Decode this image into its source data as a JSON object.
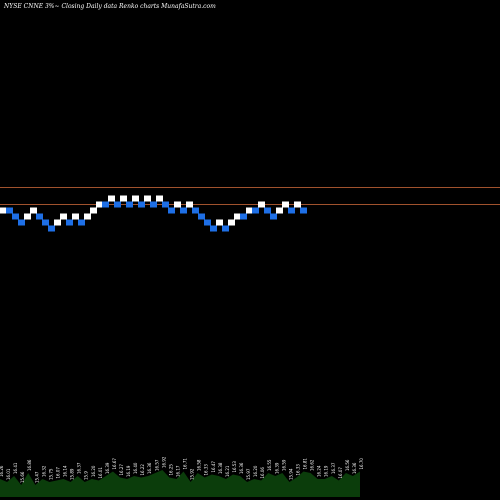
{
  "header": {
    "title": "NYSE CNNE 3%~  Closing Daily data  Renko  charts MunafaSutra.com"
  },
  "chart_data": {
    "type": "renko",
    "title": "NYSE CNNE 3%~  Closing Daily data  Renko  charts MunafaSutra.com",
    "brick_size_label": "3%",
    "colors": {
      "up": "#ffffff",
      "down": "#1e6fe6",
      "reference_line": "#a0522d",
      "volume": "#0b3d0b",
      "background": "#000000"
    },
    "reference_lines": [
      18.9,
      18.35
    ],
    "ylim": [
      15.6,
      19.6
    ],
    "bricks": [
      {
        "dir": "up",
        "level": 18.35
      },
      {
        "dir": "down",
        "level": 18.35
      },
      {
        "dir": "down",
        "level": 18.2
      },
      {
        "dir": "down",
        "level": 18.05
      },
      {
        "dir": "up",
        "level": 18.2
      },
      {
        "dir": "up",
        "level": 18.35
      },
      {
        "dir": "down",
        "level": 18.2
      },
      {
        "dir": "down",
        "level": 18.05
      },
      {
        "dir": "down",
        "level": 17.9
      },
      {
        "dir": "up",
        "level": 18.05
      },
      {
        "dir": "up",
        "level": 18.2
      },
      {
        "dir": "down",
        "level": 18.05
      },
      {
        "dir": "up",
        "level": 18.2
      },
      {
        "dir": "down",
        "level": 18.05
      },
      {
        "dir": "up",
        "level": 18.2
      },
      {
        "dir": "up",
        "level": 18.35
      },
      {
        "dir": "up",
        "level": 18.5
      },
      {
        "dir": "down",
        "level": 18.5
      },
      {
        "dir": "up",
        "level": 18.65
      },
      {
        "dir": "down",
        "level": 18.5
      },
      {
        "dir": "up",
        "level": 18.65
      },
      {
        "dir": "down",
        "level": 18.5
      },
      {
        "dir": "up",
        "level": 18.65
      },
      {
        "dir": "down",
        "level": 18.5
      },
      {
        "dir": "up",
        "level": 18.65
      },
      {
        "dir": "down",
        "level": 18.5
      },
      {
        "dir": "up",
        "level": 18.65
      },
      {
        "dir": "down",
        "level": 18.5
      },
      {
        "dir": "down",
        "level": 18.35
      },
      {
        "dir": "up",
        "level": 18.5
      },
      {
        "dir": "down",
        "level": 18.35
      },
      {
        "dir": "up",
        "level": 18.5
      },
      {
        "dir": "down",
        "level": 18.35
      },
      {
        "dir": "down",
        "level": 18.2
      },
      {
        "dir": "down",
        "level": 18.05
      },
      {
        "dir": "down",
        "level": 17.9
      },
      {
        "dir": "up",
        "level": 18.05
      },
      {
        "dir": "down",
        "level": 17.9
      },
      {
        "dir": "up",
        "level": 18.05
      },
      {
        "dir": "up",
        "level": 18.2
      },
      {
        "dir": "down",
        "level": 18.2
      },
      {
        "dir": "up",
        "level": 18.35
      },
      {
        "dir": "down",
        "level": 18.35
      },
      {
        "dir": "up",
        "level": 18.5
      },
      {
        "dir": "down",
        "level": 18.35
      },
      {
        "dir": "down",
        "level": 18.2
      },
      {
        "dir": "up",
        "level": 18.35
      },
      {
        "dir": "up",
        "level": 18.5
      },
      {
        "dir": "down",
        "level": 18.35
      },
      {
        "dir": "up",
        "level": 18.5
      },
      {
        "dir": "down",
        "level": 18.35
      }
    ],
    "volume_labels": [
      "16.26",
      "16.01",
      "16.41",
      "15.66",
      "16.86",
      "15.47",
      "16.32",
      "15.75",
      "16.07",
      "16.14",
      "15.89",
      "16.37",
      "15.9",
      "16.20",
      "16.01",
      "16.39",
      "16.67",
      "16.27",
      "16.19",
      "16.40",
      "16.22",
      "16.36",
      "16.57",
      "16.92",
      "16.25",
      "16.17",
      "16.71",
      "15.92",
      "16.58",
      "16.33",
      "16.47",
      "16.38",
      "16.21",
      "16.53",
      "16.36",
      "15.97",
      "16.20",
      "16.06",
      "16.55",
      "16.39",
      "16.59",
      "15.94",
      "16.33",
      "16.81",
      "16.62",
      "16.24",
      "16.19",
      "16.37",
      "16.07",
      "16.56",
      "16.36",
      "16.70"
    ],
    "volume_values": [
      0.6,
      0.5,
      0.7,
      0.4,
      0.8,
      0.4,
      0.6,
      0.5,
      0.55,
      0.6,
      0.5,
      0.7,
      0.5,
      0.6,
      0.55,
      0.7,
      0.85,
      0.65,
      0.6,
      0.7,
      0.65,
      0.7,
      0.8,
      0.9,
      0.65,
      0.6,
      0.85,
      0.5,
      0.8,
      0.65,
      0.75,
      0.7,
      0.6,
      0.75,
      0.7,
      0.5,
      0.6,
      0.55,
      0.8,
      0.7,
      0.8,
      0.5,
      0.65,
      0.85,
      0.8,
      0.6,
      0.6,
      0.7,
      0.55,
      0.8,
      0.7,
      0.85
    ]
  }
}
